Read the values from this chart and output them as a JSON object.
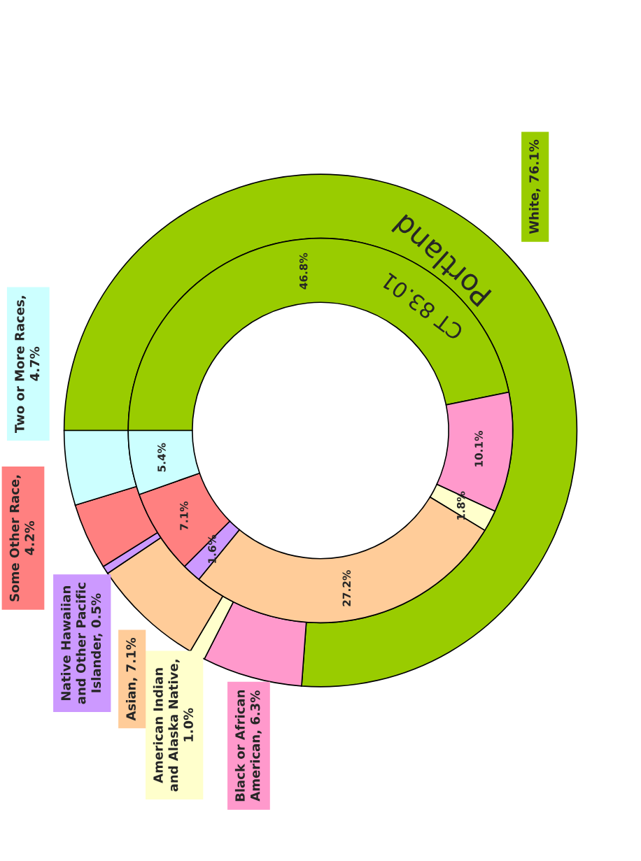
{
  "chart_data": {
    "type": "donut",
    "legend": false,
    "series": [
      {
        "name": "Portland",
        "values": [
          76.1,
          6.3,
          1.0,
          7.1,
          0.5,
          4.2,
          4.7
        ],
        "colors": [
          "#99cc00",
          "#ff99cc",
          "#ffffcc",
          "#ffcc99",
          "#cc99ff",
          "#ff8080",
          "#ccffff"
        ],
        "value_labels": [
          "White, 76.1%",
          "Black or African\nAmerican, 6.3%",
          "American Indian\nand Alaska Native,\n1.0%",
          "Asian, 7.1%",
          "Native Hawaiian\nand Other Pacific\nIslander, 0.5%",
          "Some Other Race,\n4.2%",
          "Two or More Races,\n4.7%"
        ]
      },
      {
        "name": "CT 83.01",
        "values": [
          46.8,
          10.1,
          1.8,
          27.2,
          1.6,
          7.1,
          5.4
        ],
        "colors": [
          "#99cc00",
          "#ff99cc",
          "#ffffcc",
          "#ffcc99",
          "#cc99ff",
          "#ff8080",
          "#ccffff"
        ],
        "value_labels": [
          "46.8%",
          "10.1%",
          "1.8%",
          "27.2%",
          "1.6%",
          "7.1%",
          "5.4%"
        ]
      }
    ]
  }
}
